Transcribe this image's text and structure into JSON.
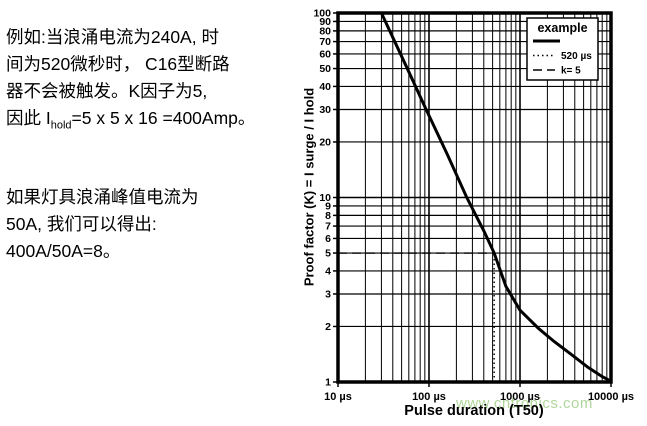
{
  "left_panel": {
    "paragraph1": {
      "line1": "例如:当浪涌电流为240A, 时",
      "line2": "间为520微秒时， C16型断路",
      "line3": "器不会被触发。K因子为5,",
      "line4_prefix": "因此 I",
      "line4_subscript": "hold",
      "line4_suffix": "=5 x 5 x 16 =400Amp。"
    },
    "paragraph2": {
      "line1": "如果灯具浪涌峰值电流为",
      "line2": "50A, 我们可以得出:",
      "line3": "400A/50A=8。"
    }
  },
  "chart_data": {
    "type": "line",
    "title": "",
    "xlabel": "Pulse duration (T50)",
    "ylabel": "Proof factor (K) = I surge / I hold",
    "x_scale": "log",
    "y_scale": "log",
    "xlim": [
      10,
      10000
    ],
    "ylim": [
      1,
      100
    ],
    "grid": true,
    "x_tick_values": [
      10,
      100,
      1000,
      10000
    ],
    "x_tick_labels": [
      "10 µs",
      "100 µs",
      "1000 µs",
      "10000 µs"
    ],
    "y_tick_values": [
      100,
      90,
      80,
      70,
      60,
      50,
      40,
      30,
      20,
      10,
      9,
      8,
      7,
      6,
      5,
      4,
      3,
      2,
      1
    ],
    "legend": {
      "position": "top-right",
      "title": "example",
      "entries": [
        {
          "style": "solid",
          "label": ""
        },
        {
          "style": "dotted",
          "label": "520 µs"
        },
        {
          "style": "dashed",
          "label": "k= 5"
        }
      ]
    },
    "series": [
      {
        "name": "example-curve",
        "style": "solid",
        "points": [
          [
            30,
            100
          ],
          [
            60,
            48
          ],
          [
            93,
            30
          ],
          [
            160,
            17
          ],
          [
            260,
            10
          ],
          [
            400,
            6.6
          ],
          [
            520,
            5
          ],
          [
            700,
            3.3
          ],
          [
            1000,
            2.45
          ],
          [
            1600,
            1.95
          ],
          [
            2400,
            1.65
          ],
          [
            3600,
            1.42
          ],
          [
            5600,
            1.2
          ],
          [
            8000,
            1.07
          ],
          [
            10000,
            1.01
          ]
        ]
      },
      {
        "name": "marker-520us",
        "style": "dotted",
        "points": [
          [
            520,
            1
          ],
          [
            520,
            5
          ]
        ]
      },
      {
        "name": "marker-k5",
        "style": "dashed",
        "points": [
          [
            10,
            5
          ],
          [
            520,
            5
          ]
        ]
      }
    ],
    "watermark": "www.cntronics.com",
    "watermark_color": "#71b54a",
    "line_color": "#000000"
  }
}
